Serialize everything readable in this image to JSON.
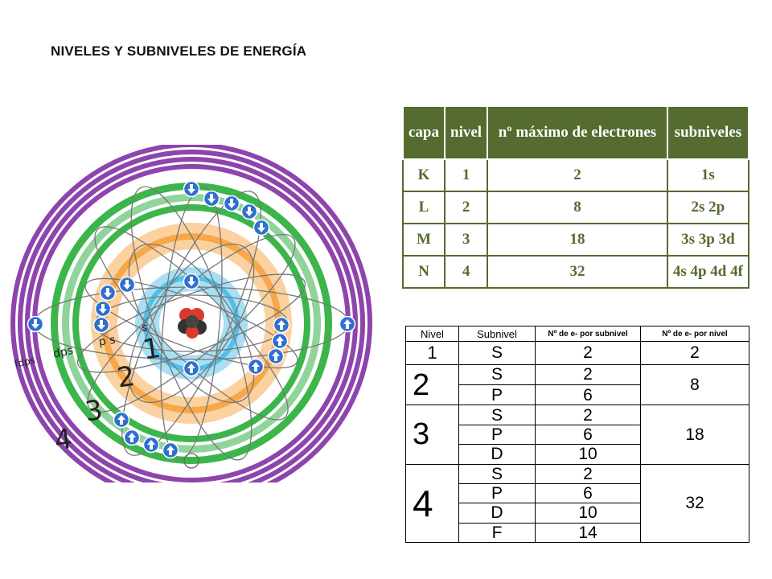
{
  "title": "NIVELES Y SUBNIVELES DE ENERGÍA",
  "diagram": {
    "level_labels": [
      "1",
      "2",
      "3",
      "4"
    ],
    "sublevel_labels": {
      "level1": "s",
      "level2": "p s",
      "level3": "dps",
      "level4": "fdps"
    },
    "colors": {
      "level1": "#4fc1e9",
      "level2": "#f7a84a",
      "level3": "#3cb54a",
      "level4": "#8e44ad",
      "electron": "#2e6fd0",
      "nucleus_red": "#d93a2b",
      "nucleus_dark": "#333333"
    },
    "icons": [
      "electron-up-arrow-icon",
      "electron-down-arrow-icon"
    ]
  },
  "table1": {
    "headers": [
      "capa",
      "nivel",
      "nº máximo de electrones",
      "subniveles"
    ],
    "rows": [
      [
        "K",
        "1",
        "2",
        "1s"
      ],
      [
        "L",
        "2",
        "8",
        "2s 2p"
      ],
      [
        "M",
        "3",
        "18",
        "3s 3p 3d"
      ],
      [
        "N",
        "4",
        "32",
        "4s 4p 4d 4f"
      ]
    ],
    "color": "#556b2f"
  },
  "table2": {
    "headers": [
      "Nivel",
      "Subnivel",
      "Nº de e- por subnivel",
      "Nº de e- por nivel"
    ],
    "groups": [
      {
        "nivel": "1",
        "total": "2",
        "rows": [
          [
            "S",
            "2"
          ]
        ]
      },
      {
        "nivel": "2",
        "total": "8",
        "rows": [
          [
            "S",
            "2"
          ],
          [
            "P",
            "6"
          ]
        ]
      },
      {
        "nivel": "3",
        "total": "18",
        "rows": [
          [
            "S",
            "2"
          ],
          [
            "P",
            "6"
          ],
          [
            "D",
            "10"
          ]
        ]
      },
      {
        "nivel": "4",
        "total": "32",
        "rows": [
          [
            "S",
            "2"
          ],
          [
            "P",
            "6"
          ],
          [
            "D",
            "10"
          ],
          [
            "F",
            "14"
          ]
        ]
      }
    ]
  }
}
